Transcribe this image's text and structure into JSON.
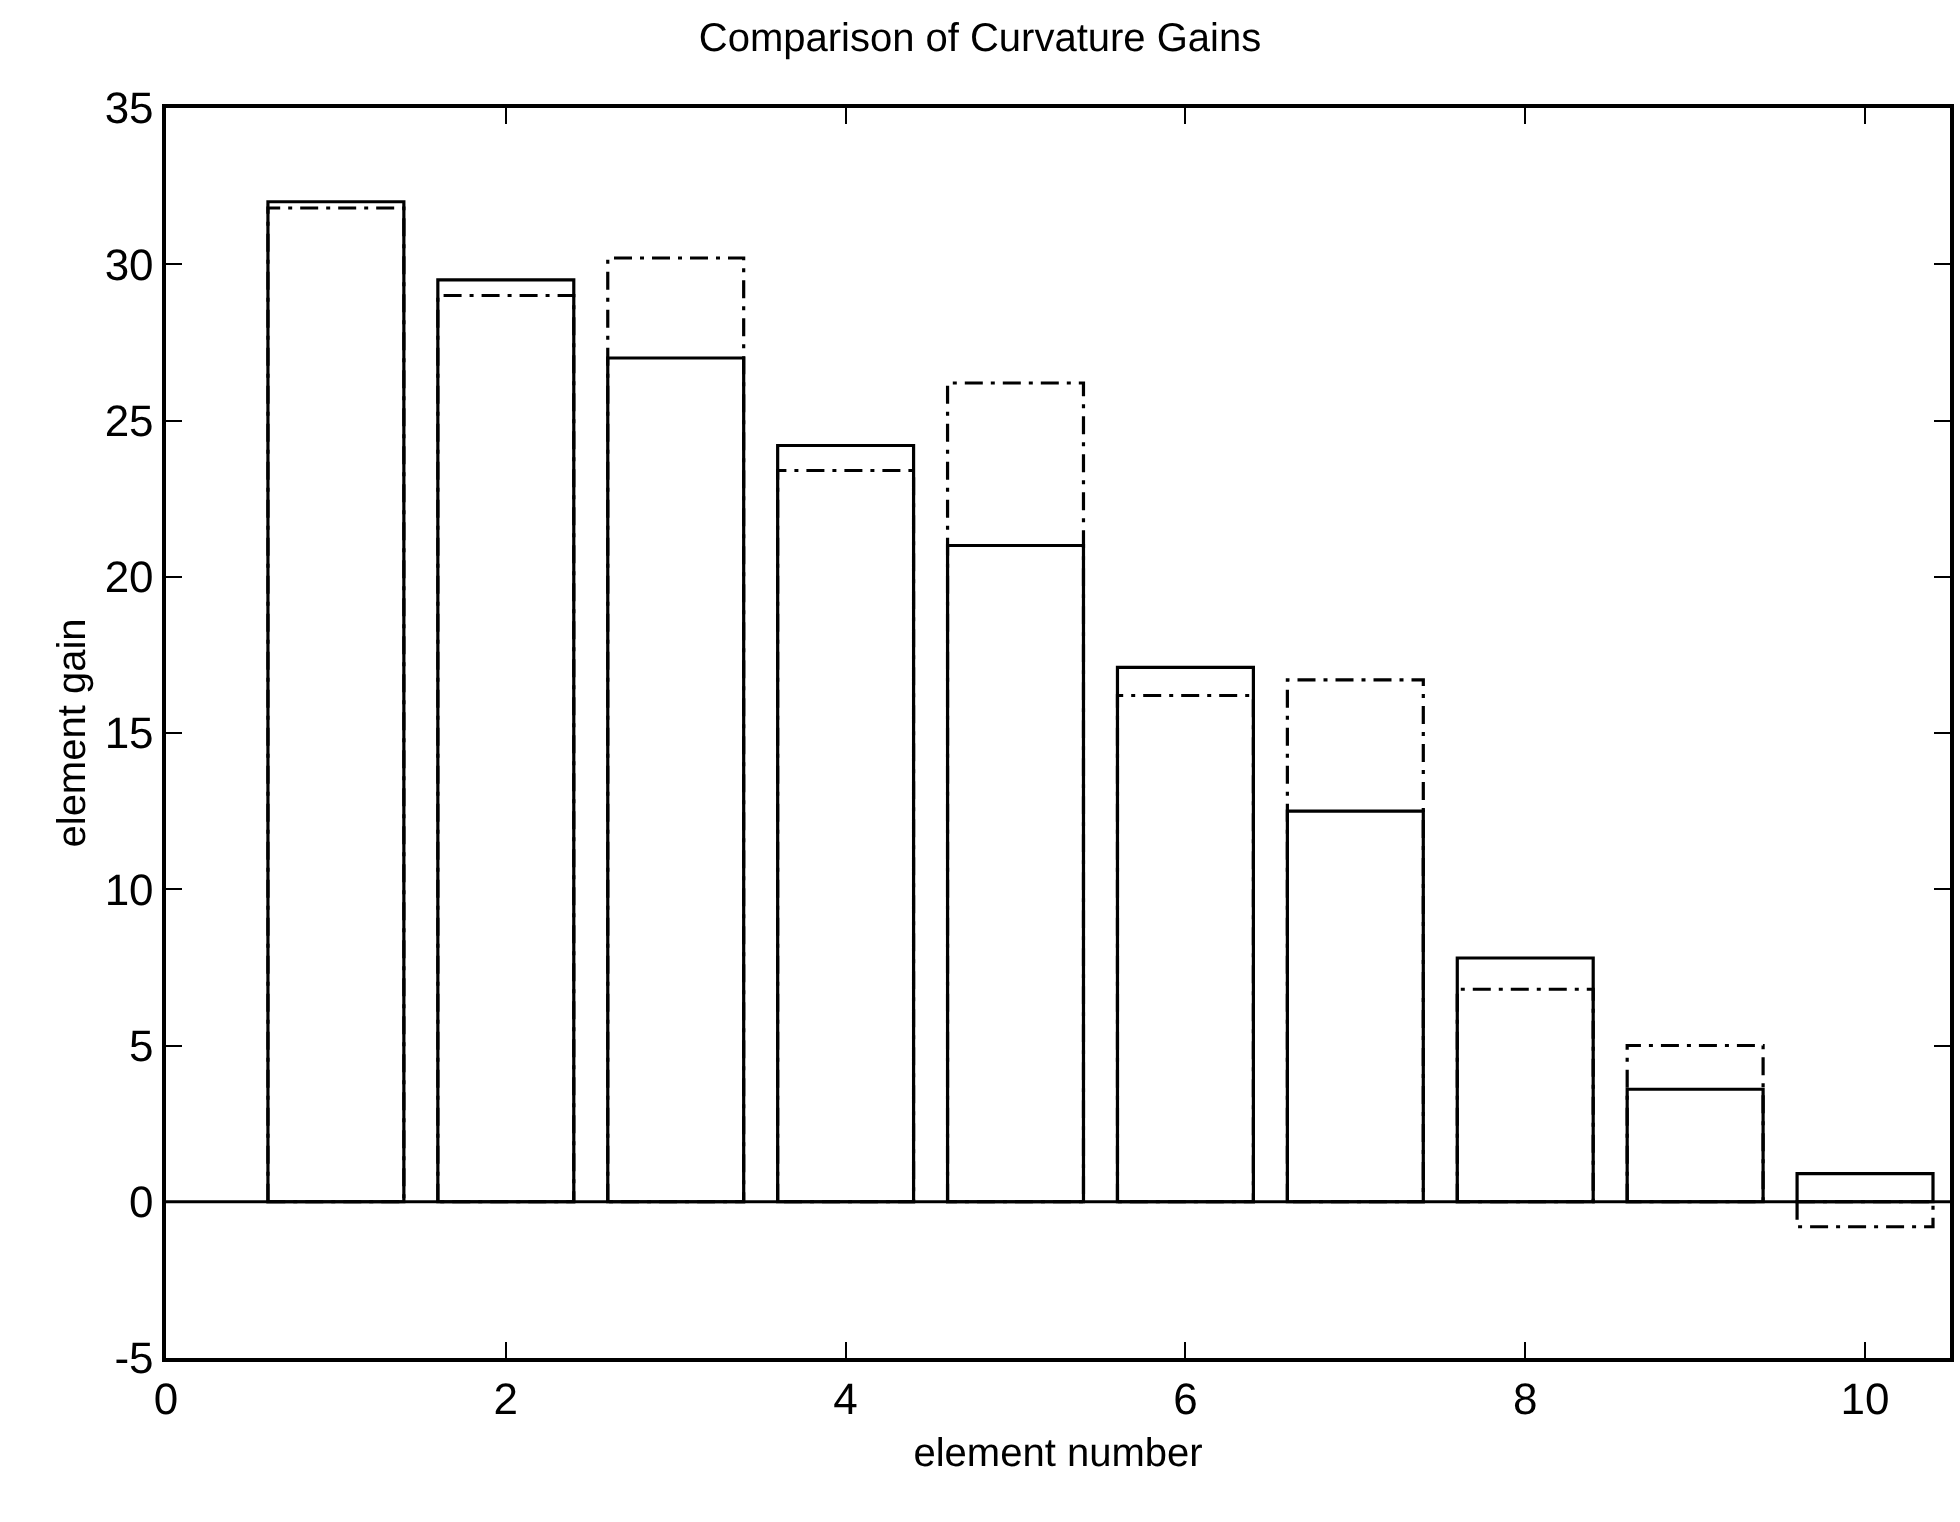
{
  "chart_data": {
    "type": "bar",
    "title": "Comparison of Curvature Gains",
    "xlabel": "element number",
    "ylabel": "element gain",
    "x": [
      1,
      2,
      3,
      4,
      5,
      6,
      7,
      8,
      9,
      10
    ],
    "series": [
      {
        "color": "#000000",
        "line_style": "solid",
        "values": [
          32.0,
          29.5,
          27.0,
          24.2,
          21.0,
          17.1,
          12.5,
          7.8,
          3.6,
          0.9
        ]
      },
      {
        "color": "#000000",
        "line_style": "dashdot",
        "values": [
          31.8,
          29.0,
          30.2,
          23.4,
          26.2,
          16.2,
          16.7,
          6.8,
          5.0,
          -0.8
        ]
      }
    ],
    "xlim": [
      0,
      10.5
    ],
    "xticks": [
      0,
      2,
      4,
      6,
      8,
      10
    ],
    "ylim": [
      -5,
      35
    ],
    "yticks": [
      -5,
      0,
      5,
      10,
      15,
      20,
      25,
      30,
      35
    ],
    "ref_lines": [
      {
        "axis": "y",
        "value": 0,
        "color": "#000000",
        "line_style": "solid"
      }
    ]
  }
}
